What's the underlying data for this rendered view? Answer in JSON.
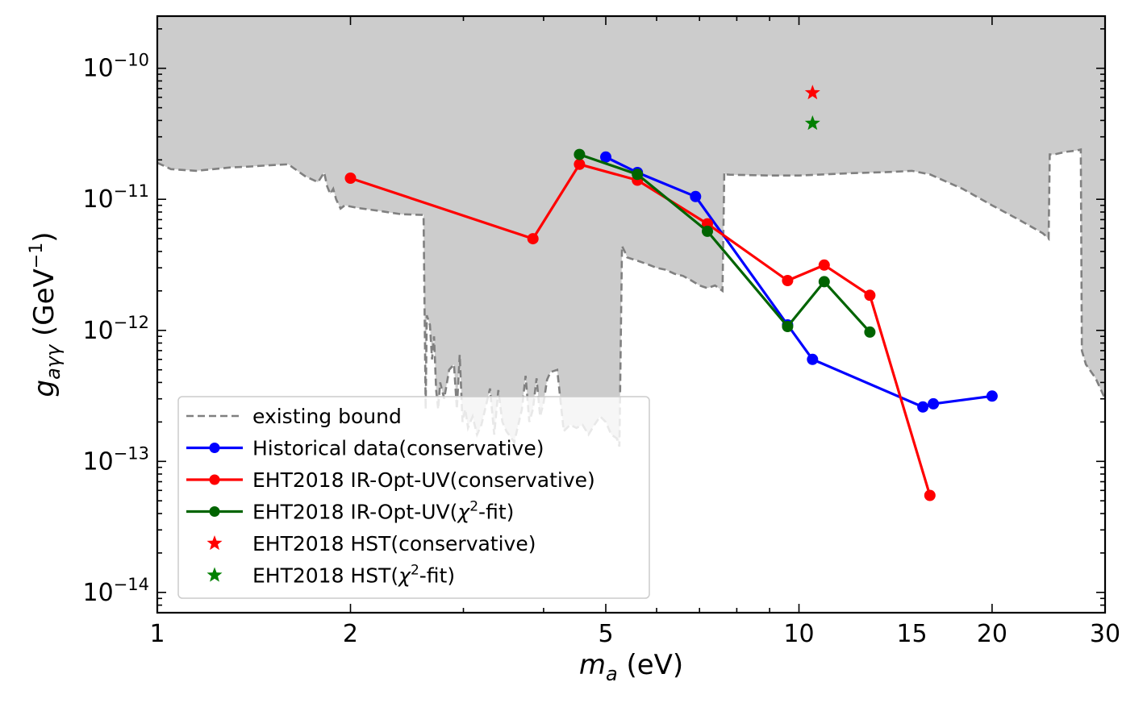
{
  "chart_data": {
    "type": "line",
    "xscale": "log",
    "yscale": "log",
    "xlim": [
      1,
      30
    ],
    "ylim": [
      7e-15,
      2.5e-10
    ],
    "xlabel": {
      "main": "m",
      "sub": "a",
      "rest": " (eV)"
    },
    "ylabel": {
      "main": "g",
      "sub": "aγγ",
      "rest": " (GeV",
      "sup": "−1",
      "close": ")"
    },
    "x_ticks": [
      {
        "value": 1,
        "label": "1"
      },
      {
        "value": 2,
        "label": "2"
      },
      {
        "value": 5,
        "label": "5"
      },
      {
        "value": 10,
        "label": "10"
      },
      {
        "value": 15,
        "label": "15"
      },
      {
        "value": 20,
        "label": "20"
      },
      {
        "value": 30,
        "label": "30"
      }
    ],
    "y_ticks": [
      {
        "value": 1e-10,
        "base": "10",
        "exp": "−10"
      },
      {
        "value": 1e-11,
        "base": "10",
        "exp": "−11"
      },
      {
        "value": 1e-12,
        "base": "10",
        "exp": "−12"
      },
      {
        "value": 1e-13,
        "base": "10",
        "exp": "−13"
      },
      {
        "value": 1e-14,
        "base": "10",
        "exp": "−14"
      }
    ],
    "bound": {
      "name": "existing bound",
      "color": "#808080",
      "fill": "#cccccc",
      "x": [
        1.0,
        1.05,
        1.15,
        1.3,
        1.4,
        1.5,
        1.6,
        1.7,
        1.78,
        1.82,
        1.84,
        1.86,
        1.88,
        1.9,
        1.93,
        1.96,
        2.05,
        2.2,
        2.4,
        2.6,
        2.62,
        2.63,
        2.66,
        2.68,
        2.7,
        2.72,
        2.74,
        2.76,
        2.8,
        2.85,
        2.9,
        2.93,
        2.96,
        2.99,
        3.02,
        3.05,
        3.1,
        3.15,
        3.2,
        3.3,
        3.35,
        3.4,
        3.45,
        3.5,
        3.6,
        3.7,
        3.75,
        3.8,
        3.85,
        3.9,
        3.95,
        4.0,
        4.05,
        4.1,
        4.2,
        4.3,
        4.4,
        4.5,
        4.6,
        4.7,
        4.8,
        4.9,
        5.0,
        5.1,
        5.2,
        5.25,
        5.3,
        5.35,
        5.4,
        5.6,
        5.8,
        6.0,
        6.2,
        6.4,
        6.6,
        6.8,
        7.0,
        7.2,
        7.4,
        7.6,
        7.65,
        7.7,
        7.8,
        9.0,
        10.0,
        12.0,
        14.0,
        15.0,
        16.0,
        18.0,
        20.0,
        22.0,
        24.0,
        24.5,
        24.6,
        25.0,
        26.0,
        27.0,
        27.5,
        27.6,
        28.0,
        29.0,
        30.0
      ],
      "y": [
        1.9e-11,
        1.7e-11,
        1.65e-11,
        1.75e-11,
        1.78e-11,
        1.82e-11,
        1.85e-11,
        1.5e-11,
        1.35e-11,
        1.6e-11,
        1.25e-11,
        1.1e-11,
        1.2e-11,
        1e-11,
        8.5e-12,
        9e-12,
        8.6e-12,
        8.2e-12,
        7.7e-12,
        7.6e-12,
        2.5e-13,
        1.3e-12,
        1.1e-12,
        6e-13,
        9e-13,
        3.5e-13,
        2.5e-13,
        4e-13,
        3e-13,
        5e-13,
        5.5e-13,
        2.5e-13,
        6.5e-13,
        2e-13,
        2.5e-13,
        1.8e-13,
        2.2e-13,
        1.6e-13,
        1.9e-13,
        3.6e-13,
        1.6e-13,
        3.5e-13,
        2e-13,
        1.7e-13,
        1.4e-13,
        2.5e-13,
        4.5e-13,
        2e-13,
        2.5e-13,
        4.3e-13,
        2.2e-13,
        2.8e-13,
        4.2e-13,
        4.8e-13,
        5e-13,
        1.7e-13,
        1.9e-13,
        1.8e-13,
        1.9e-13,
        1.6e-13,
        1.9e-13,
        2.2e-13,
        2e-13,
        1.6e-13,
        1.5e-13,
        1.3e-13,
        4.4e-12,
        4e-12,
        3.6e-12,
        3.4e-12,
        3.2e-12,
        3e-12,
        2.9e-12,
        2.7e-12,
        2.6e-12,
        2.4e-12,
        2.2e-12,
        2.1e-12,
        2.2e-12,
        2e-12,
        1.6e-11,
        1.55e-11,
        1.54e-11,
        1.52e-11,
        1.52e-11,
        1.58e-11,
        1.62e-11,
        1.65e-11,
        1.55e-11,
        1.2e-11,
        9e-12,
        7e-12,
        5.5e-12,
        5e-12,
        2.2e-11,
        2.2e-11,
        2.3e-11,
        2.35e-11,
        2.4e-11,
        7e-13,
        5.5e-13,
        4.3e-13,
        3e-13
      ]
    },
    "series": [
      {
        "name": "Historical data(conservative)",
        "color": "#0000ff",
        "x": [
          5.0,
          5.6,
          6.9,
          9.6,
          10.5,
          15.6,
          16.2,
          20.0
        ],
        "y": [
          2.1e-11,
          1.6e-11,
          1.05e-11,
          1.1e-12,
          6e-13,
          2.6e-13,
          2.75e-13,
          3.15e-13
        ]
      },
      {
        "name": "EHT2018 IR-Opt-UV(conservative)",
        "color": "#ff0000",
        "x": [
          2.0,
          3.85,
          4.55,
          5.6,
          7.2,
          9.6,
          10.95,
          12.9,
          16.0
        ],
        "y": [
          1.45e-11,
          5e-12,
          1.85e-11,
          1.4e-11,
          6.5e-12,
          2.4e-12,
          3.15e-12,
          1.85e-12,
          5.5e-14
        ]
      },
      {
        "name": "EHT2018 IR-Opt-UV(χ²-fit)",
        "color": "#006400",
        "x": [
          4.55,
          5.6,
          7.2,
          9.6,
          10.95,
          12.9
        ],
        "y": [
          2.2e-11,
          1.55e-11,
          5.7e-12,
          1.07e-12,
          2.35e-12,
          9.7e-13
        ]
      }
    ],
    "stars": [
      {
        "name": "EHT2018 HST(conservative)",
        "color": "#ff0000",
        "x": 10.5,
        "y": 6.5e-11
      },
      {
        "name": "EHT2018 HST(χ²-fit)",
        "color": "#008000",
        "x": 10.5,
        "y": 3.8e-11
      }
    ],
    "legend": {
      "position": "lower-left",
      "entries": [
        {
          "kind": "dashed",
          "color": "#808080",
          "label": "existing bound"
        },
        {
          "kind": "line",
          "color": "#0000ff",
          "label": "Historical data(conservative)"
        },
        {
          "kind": "line",
          "color": "#ff0000",
          "label": "EHT2018 IR-Opt-UV(conservative)"
        },
        {
          "kind": "line",
          "color": "#006400",
          "label": "EHT2018 IR-Opt-UV(",
          "greek": "χ",
          "sup": "2",
          "tail": "-fit)"
        },
        {
          "kind": "star",
          "color": "#ff0000",
          "label": "EHT2018 HST(conservative)"
        },
        {
          "kind": "star",
          "color": "#008000",
          "label": "EHT2018 HST(",
          "greek": "χ",
          "sup": "2",
          "tail": "-fit)"
        }
      ]
    }
  }
}
